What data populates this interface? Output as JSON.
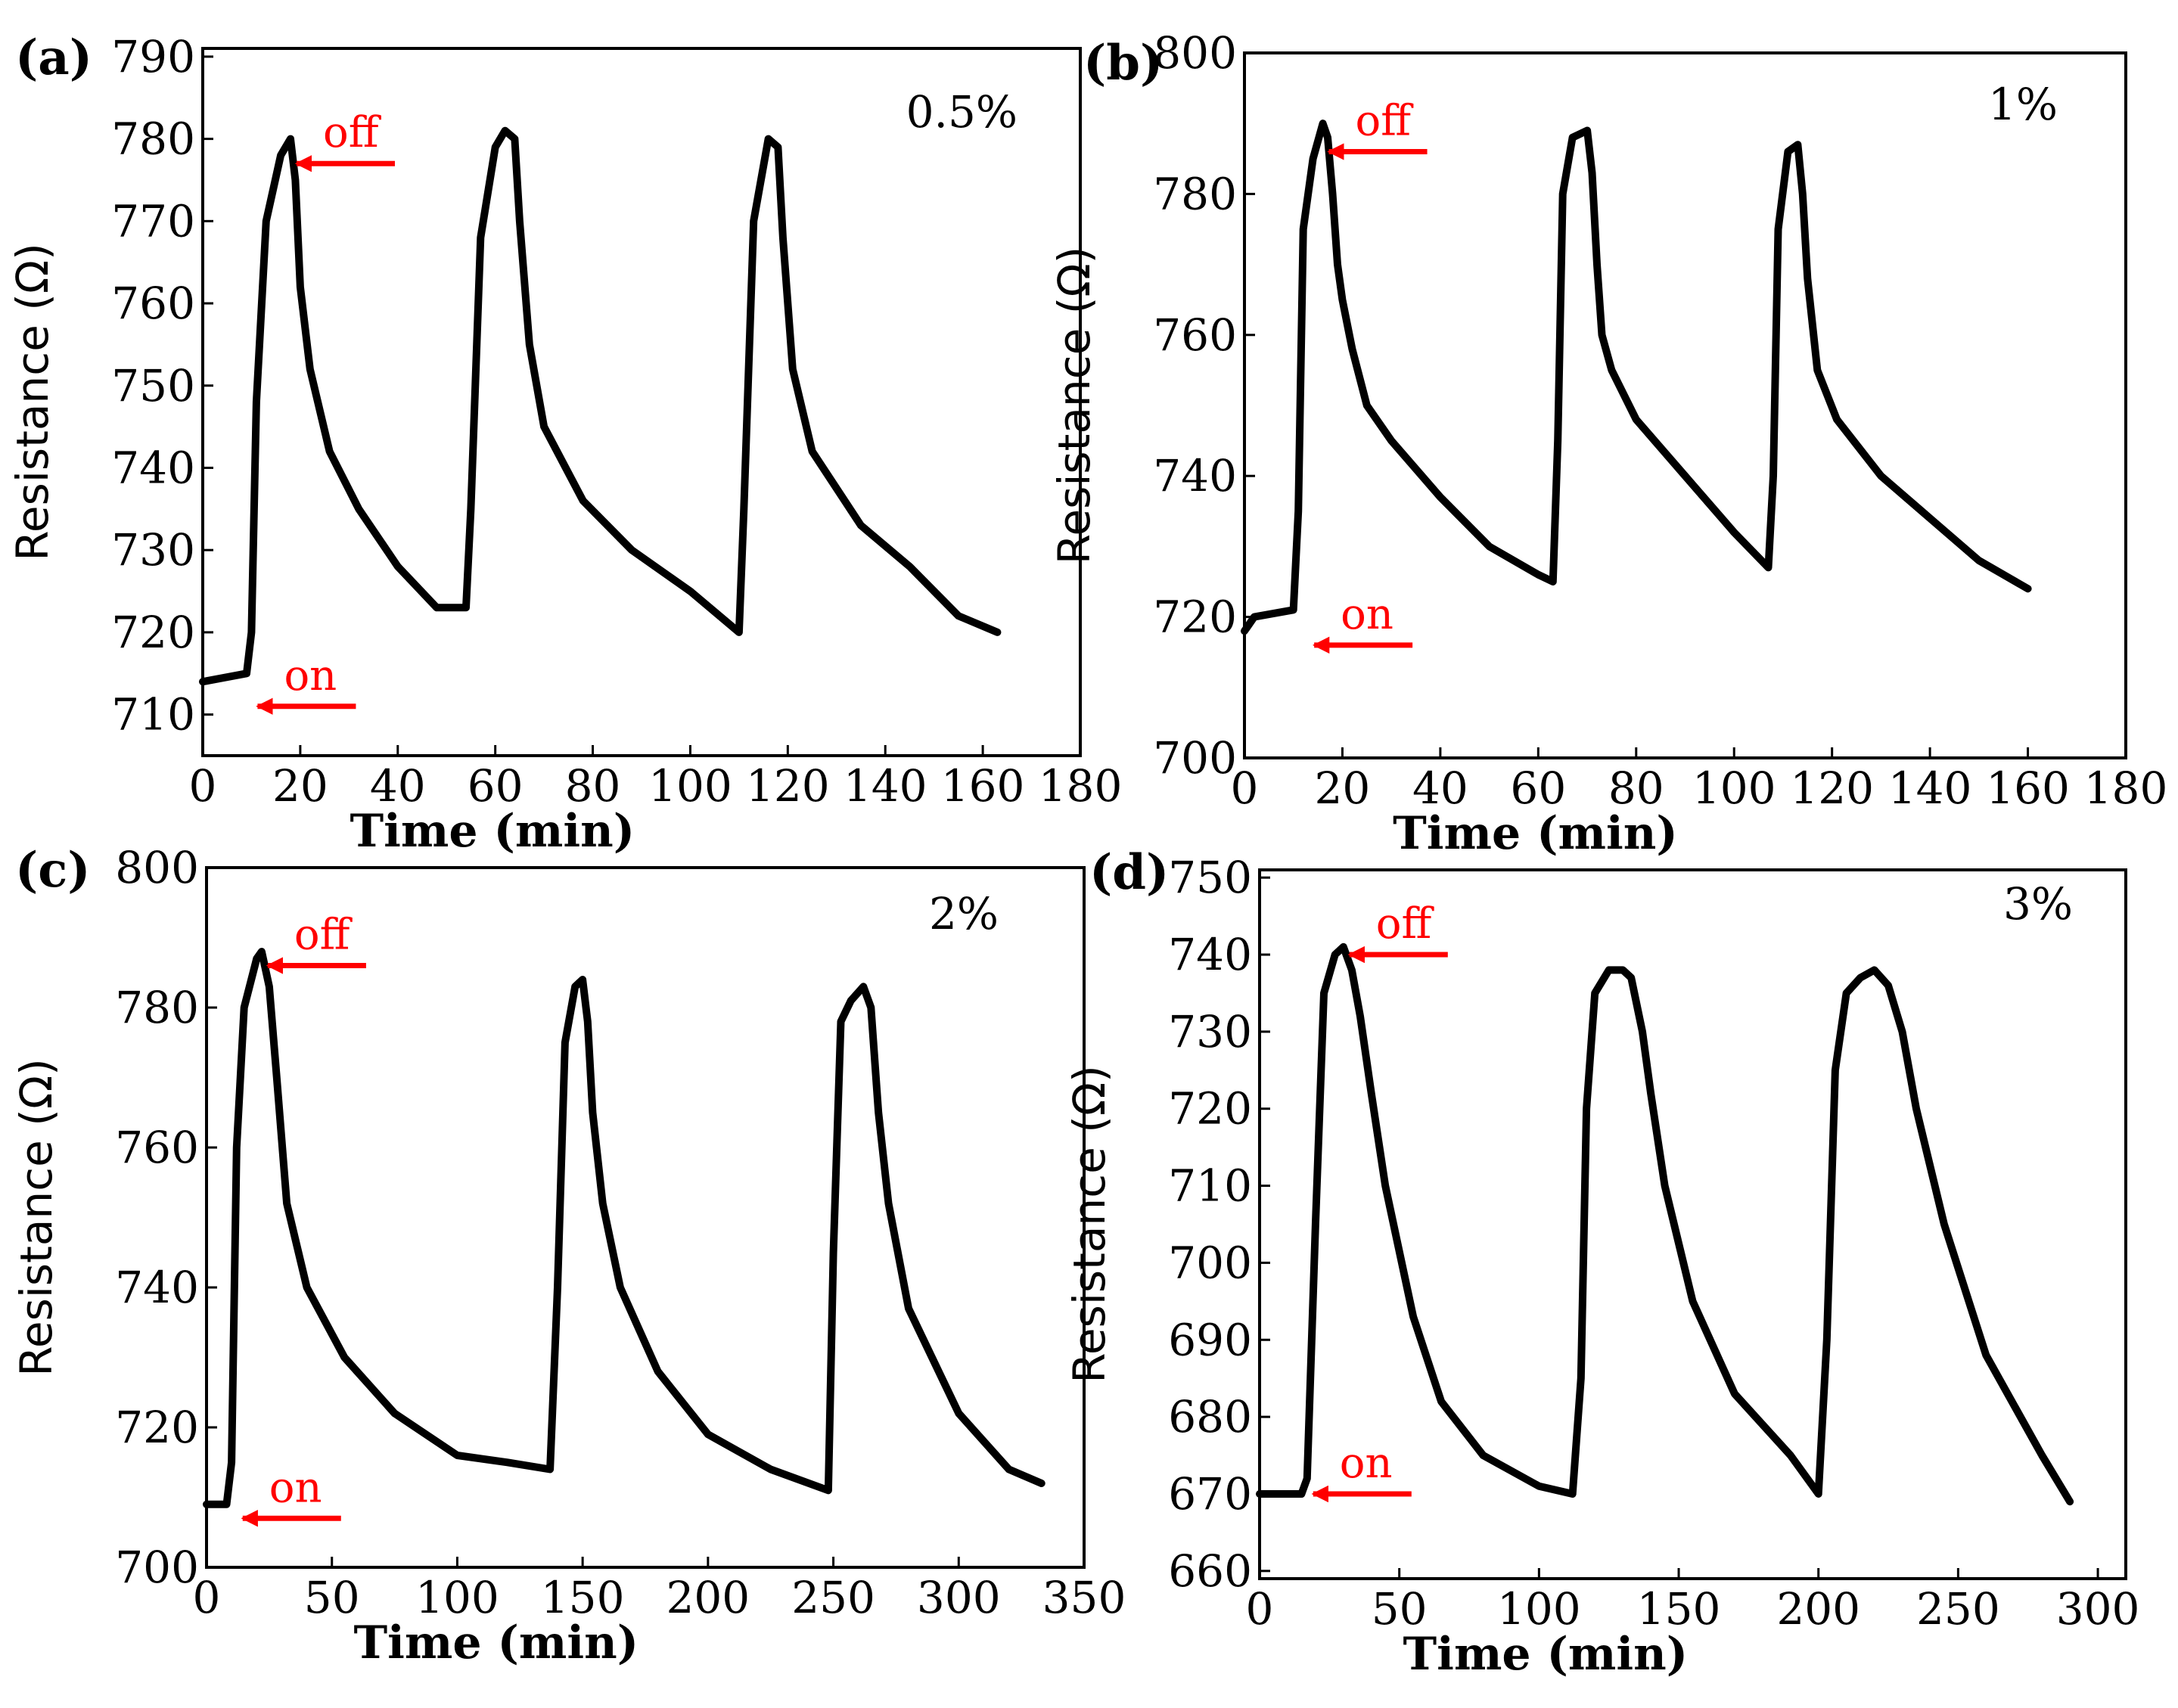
{
  "colors": {
    "line": "#000000",
    "annotation": "#ff0000",
    "frame": "#000000",
    "background": "#ffffff"
  },
  "chart_data": [
    {
      "type": "line",
      "panel_label": "(a)",
      "concentration": "0.5%",
      "xlabel": "Time (min)",
      "ylabel": "Resistance (Ω)",
      "xlim": [
        0,
        180
      ],
      "ylim": [
        705,
        791
      ],
      "xticks": [
        0,
        20,
        40,
        60,
        80,
        100,
        120,
        140,
        160,
        180
      ],
      "yticks": [
        710,
        720,
        730,
        740,
        750,
        760,
        770,
        780,
        790
      ],
      "annotations": {
        "off": "off",
        "on": "on",
        "off_target": [
          18,
          777
        ],
        "on_target": [
          10,
          711
        ]
      },
      "series": [
        {
          "name": "0.5%",
          "x": [
            0,
            9,
            10,
            11,
            13,
            16,
            18,
            19,
            20,
            22,
            26,
            32,
            40,
            48,
            54,
            55,
            57,
            60,
            62,
            64,
            65,
            67,
            70,
            78,
            88,
            100,
            110,
            111,
            113,
            116,
            118,
            119,
            121,
            125,
            135,
            145,
            155,
            163
          ],
          "y": [
            714,
            715,
            720,
            748,
            770,
            778,
            780,
            775,
            762,
            752,
            742,
            735,
            728,
            723,
            723,
            735,
            768,
            779,
            781,
            780,
            770,
            755,
            745,
            736,
            730,
            725,
            720,
            735,
            770,
            780,
            779,
            768,
            752,
            742,
            733,
            728,
            722,
            720
          ]
        }
      ]
    },
    {
      "type": "line",
      "panel_label": "(b)",
      "concentration": "1%",
      "xlabel": "Time (min)",
      "ylabel": "Resistance (Ω)",
      "xlim": [
        0,
        180
      ],
      "ylim": [
        700,
        800
      ],
      "xticks": [
        0,
        20,
        40,
        60,
        80,
        100,
        120,
        140,
        160,
        180
      ],
      "yticks": [
        700,
        720,
        740,
        760,
        780,
        800
      ],
      "annotations": {
        "off": "off",
        "on": "on",
        "off_target": [
          16,
          786
        ],
        "on_target": [
          13,
          716
        ]
      },
      "series": [
        {
          "name": "1%",
          "x": [
            0,
            2,
            10,
            11,
            12,
            14,
            16,
            17,
            18,
            19,
            20,
            22,
            25,
            30,
            40,
            50,
            60,
            63,
            64,
            65,
            67,
            70,
            71,
            72,
            73,
            75,
            80,
            90,
            100,
            107,
            108,
            109,
            111,
            113,
            114,
            115,
            117,
            121,
            130,
            140,
            150,
            160
          ],
          "y": [
            718,
            720,
            721,
            735,
            775,
            785,
            790,
            788,
            780,
            770,
            765,
            758,
            750,
            745,
            737,
            730,
            726,
            725,
            745,
            780,
            788,
            789,
            783,
            770,
            760,
            755,
            748,
            740,
            732,
            727,
            740,
            775,
            786,
            787,
            780,
            768,
            755,
            748,
            740,
            734,
            728,
            724
          ]
        }
      ]
    },
    {
      "type": "line",
      "panel_label": "(c)",
      "concentration": "2%",
      "xlabel": "Time (min)",
      "ylabel": "Resistance (Ω)",
      "xlim": [
        0,
        350
      ],
      "ylim": [
        700,
        800
      ],
      "xticks": [
        0,
        50,
        100,
        150,
        200,
        250,
        300,
        350
      ],
      "yticks": [
        700,
        720,
        740,
        760,
        780,
        800
      ],
      "annotations": {
        "off": "off",
        "on": "on",
        "off_target": [
          22,
          786
        ],
        "on_target": [
          12,
          707
        ]
      },
      "series": [
        {
          "name": "2%",
          "x": [
            0,
            8,
            10,
            12,
            15,
            20,
            22,
            25,
            28,
            32,
            40,
            55,
            75,
            100,
            120,
            137,
            140,
            143,
            147,
            150,
            152,
            154,
            158,
            165,
            180,
            200,
            225,
            248,
            250,
            253,
            257,
            262,
            265,
            268,
            272,
            280,
            300,
            320,
            333
          ],
          "y": [
            709,
            709,
            715,
            760,
            780,
            787,
            788,
            783,
            770,
            752,
            740,
            730,
            722,
            716,
            715,
            714,
            740,
            775,
            783,
            784,
            778,
            765,
            752,
            740,
            728,
            719,
            714,
            711,
            745,
            778,
            781,
            783,
            780,
            765,
            752,
            737,
            722,
            714,
            712
          ]
        }
      ]
    },
    {
      "type": "line",
      "panel_label": "(d)",
      "concentration": "3%",
      "xlabel": "Time (min)",
      "ylabel": "Resistance (Ω)",
      "xlim": [
        0,
        310
      ],
      "ylim": [
        659,
        751
      ],
      "xticks": [
        0,
        50,
        100,
        150,
        200,
        250,
        300
      ],
      "yticks": [
        660,
        670,
        680,
        690,
        700,
        710,
        720,
        730,
        740,
        750
      ],
      "annotations": {
        "off": "off",
        "on": "on",
        "off_target": [
          30,
          740
        ],
        "on_target": [
          17,
          670
        ]
      },
      "series": [
        {
          "name": "3%",
          "x": [
            0,
            15,
            17,
            20,
            23,
            27,
            30,
            33,
            36,
            40,
            45,
            55,
            65,
            80,
            100,
            112,
            115,
            117,
            120,
            125,
            130,
            133,
            137,
            140,
            145,
            155,
            170,
            190,
            200,
            203,
            206,
            210,
            215,
            220,
            225,
            230,
            235,
            245,
            260,
            280,
            290
          ],
          "y": [
            670,
            670,
            672,
            705,
            735,
            740,
            741,
            738,
            732,
            722,
            710,
            693,
            682,
            675,
            671,
            670,
            685,
            720,
            735,
            738,
            738,
            737,
            730,
            722,
            710,
            695,
            683,
            675,
            670,
            690,
            725,
            735,
            737,
            738,
            736,
            730,
            720,
            705,
            688,
            675,
            669
          ]
        }
      ]
    }
  ]
}
